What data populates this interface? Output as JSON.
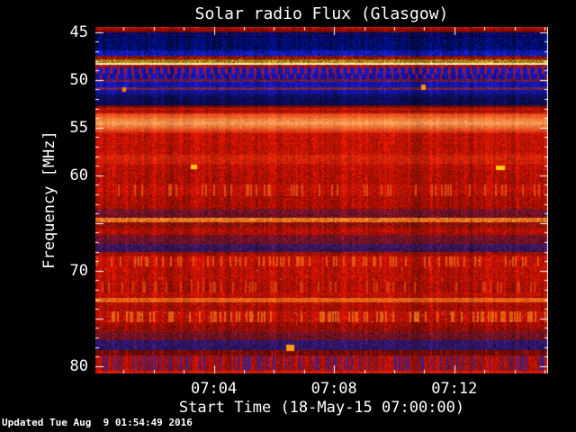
{
  "footer": {
    "updated": "Updated Tue Aug  9 01:54:49 2016"
  },
  "chart_data": {
    "type": "heatmap",
    "title": "Solar radio Flux (Glasgow)",
    "xlabel": "Start Time (18-May-15 07:00:00)",
    "ylabel": "Frequency [MHz]",
    "time_range_min": [
      0.06,
      15.12
    ],
    "freq_range_mhz": [
      44.46,
      80.78
    ],
    "x_ticks": {
      "minor_step": 1,
      "major": [
        4,
        8,
        12
      ],
      "labels": [
        {
          "t": 4,
          "text": "07:04"
        },
        {
          "t": 8,
          "text": "07:08"
        },
        {
          "t": 12,
          "text": "07:12"
        }
      ]
    },
    "y_ticks": {
      "minor_step": 1,
      "major": [
        45,
        50,
        55,
        60,
        65,
        70,
        75,
        80
      ],
      "labels": [
        {
          "f": 45,
          "text": "45"
        },
        {
          "f": 50,
          "text": "50"
        },
        {
          "f": 55,
          "text": "55"
        },
        {
          "f": 60,
          "text": "60"
        },
        {
          "f": 70,
          "text": "70"
        },
        {
          "f": 80,
          "text": "80"
        }
      ]
    },
    "colors": {
      "background": "#000000",
      "text": "#ffffff",
      "frame": "#ffffff"
    },
    "bands": [
      {
        "f0": 44.46,
        "f1": 45.02,
        "c0": "#b81404",
        "c1": "#6e0600",
        "pn": 0.35,
        "cn": 1.2
      },
      {
        "f0": 45.02,
        "f1": 46.9,
        "c0": "#000a60",
        "c1": "#000d70",
        "pn": 0.5,
        "cn": 2.2,
        "spk": {
          "c": "#1a2acc",
          "p": 0.02
        },
        "dash": {
          "c": "#020830",
          "p": 0.05,
          "w": 2
        }
      },
      {
        "f0": 46.9,
        "f1": 47.45,
        "c0": "#0d17a8",
        "c1": "#101cb8",
        "pn": 0.45,
        "cn": 1.8
      },
      {
        "f0": 47.45,
        "f1": 47.85,
        "c0": "#8e1405",
        "c1": "#9e1505",
        "pn": 0.45,
        "cn": 1.2,
        "spk": {
          "c": "#201048",
          "p": 0.12
        }
      },
      {
        "f0": 47.85,
        "f1": 48.23,
        "c0": "#a08018",
        "c1": "#c09a22",
        "pn": 0.4,
        "cn": 1.0,
        "spk": {
          "c": "#b02808",
          "p": 0.1
        }
      },
      {
        "f0": 48.23,
        "f1": 48.46,
        "c0": "#ffe98c",
        "c1": "#fff8d8",
        "pn": 0.12,
        "cn": 0.4
      },
      {
        "f0": 48.46,
        "f1": 48.7,
        "c0": "#b01808",
        "c1": "#a01405",
        "pn": 0.4,
        "cn": 1.0,
        "spk": {
          "c": "#30104a",
          "p": 0.08
        }
      },
      {
        "f0": 48.7,
        "f1": 49.36,
        "c0": "#111ac0",
        "c1": "#0f18b8",
        "pn": 0.4,
        "cn": 1.5,
        "dash": {
          "c": "#cc1606",
          "per": 8,
          "w": 3
        }
      },
      {
        "f0": 49.36,
        "f1": 49.92,
        "c0": "#0e15b2",
        "c1": "#0d14ac",
        "pn": 0.4,
        "cn": 1.5,
        "dash": {
          "c": "#b81505",
          "per": 9,
          "w": 2,
          "off": 4
        }
      },
      {
        "f0": 49.92,
        "f1": 50.2,
        "c0": "#6a1640",
        "c1": "#701a44",
        "pn": 0.35,
        "cn": 1.2
      },
      {
        "f0": 50.2,
        "f1": 50.77,
        "c0": "#0f18b8",
        "c1": "#0e16b0",
        "pn": 0.4,
        "cn": 1.6
      },
      {
        "f0": 50.77,
        "f1": 51.05,
        "c0": "#702040",
        "c1": "#762444",
        "pn": 0.35,
        "cn": 1.2
      },
      {
        "f0": 51.05,
        "f1": 51.43,
        "c0": "#0e15b0",
        "c1": "#0d14a8",
        "pn": 0.4,
        "cn": 1.6
      },
      {
        "f0": 51.43,
        "f1": 51.8,
        "c0": "#150f68",
        "c1": "#130d60",
        "pn": 0.4,
        "cn": 1.6
      },
      {
        "f0": 51.8,
        "f1": 52.66,
        "c0": "#0a0d58",
        "c1": "#090c50",
        "pn": 0.5,
        "cn": 2.0
      },
      {
        "f0": 52.66,
        "f1": 52.94,
        "c0": "#5e0a00",
        "c1": "#8a1000",
        "pn": 0.3,
        "cn": 1.0
      },
      {
        "f0": 52.94,
        "f1": 53.22,
        "c0": "#c41505",
        "c1": "#b41204",
        "pn": 0.25,
        "cn": 1.0
      },
      {
        "f0": 53.22,
        "f1": 53.5,
        "c0": "#9e1202",
        "c1": "#b81605",
        "pn": 0.25,
        "cn": 1.0
      },
      {
        "f0": 53.5,
        "f1": 54.55,
        "c0": "#e84412",
        "c1": "#ff9a52",
        "pn": 0.15,
        "cn": 0.8
      },
      {
        "f0": 54.55,
        "f1": 55.6,
        "c0": "#ff9a52",
        "c1": "#d82a0a",
        "pn": 0.15,
        "cn": 0.8
      },
      {
        "f0": 55.6,
        "f1": 57.85,
        "c0": "#c21404",
        "c1": "#c01304",
        "pn": 0.28,
        "cn": 1.4
      },
      {
        "f0": 57.85,
        "f1": 58.8,
        "c0": "#d62509",
        "c1": "#ce1f07",
        "pn": 0.25,
        "cn": 1.2
      },
      {
        "f0": 58.8,
        "f1": 59.55,
        "c0": "#c01305",
        "c1": "#ba1104",
        "pn": 0.28,
        "cn": 1.3
      },
      {
        "f0": 59.55,
        "f1": 60.96,
        "c0": "#b51103",
        "c1": "#b01003",
        "pn": 0.32,
        "cn": 1.6
      },
      {
        "f0": 60.96,
        "f1": 62.18,
        "c0": "#c01305",
        "c1": "#b81204",
        "pn": 0.3,
        "cn": 1.4,
        "dash": {
          "c": "#e85815",
          "p": 0.1,
          "w": 2
        }
      },
      {
        "f0": 62.18,
        "f1": 63.5,
        "c0": "#ae1003",
        "c1": "#a60e02",
        "pn": 0.32,
        "cn": 1.5
      },
      {
        "f0": 63.5,
        "f1": 64.45,
        "c0": "#7d1222",
        "c1": "#741020",
        "pn": 0.4,
        "cn": 1.3,
        "spk": {
          "c": "#3a1252",
          "p": 0.1
        }
      },
      {
        "f0": 64.45,
        "f1": 64.92,
        "c0": "#f47018",
        "c1": "#e86014",
        "pn": 0.25,
        "cn": 0.9,
        "spk": {
          "c": "#ffc242",
          "p": 0.12
        }
      },
      {
        "f0": 64.92,
        "f1": 65.6,
        "c0": "#8c1210",
        "c1": "#981204",
        "pn": 0.35,
        "cn": 1.3
      },
      {
        "f0": 65.6,
        "f1": 66.25,
        "c0": "#b31103",
        "c1": "#ab0f03",
        "pn": 0.3,
        "cn": 1.4
      },
      {
        "f0": 66.25,
        "f1": 67.2,
        "c0": "#6e1230",
        "c1": "#661028",
        "pn": 0.4,
        "cn": 1.3,
        "spk": {
          "c": "#8c1408",
          "p": 0.15
        }
      },
      {
        "f0": 67.2,
        "f1": 68.05,
        "c0": "#351560",
        "c1": "#301358",
        "pn": 0.45,
        "cn": 1.5,
        "spk": {
          "c": "#6a1a40",
          "p": 0.15
        }
      },
      {
        "f0": 68.05,
        "f1": 68.52,
        "c0": "#9c1002",
        "c1": "#a81103",
        "pn": 0.3,
        "cn": 1.2
      },
      {
        "f0": 68.52,
        "f1": 69.55,
        "c0": "#c21305",
        "c1": "#bc1204",
        "pn": 0.3,
        "cn": 1.4,
        "dash": {
          "c": "#f06212",
          "p": 0.13,
          "w": 2
        },
        "spk": {
          "c": "#c8c832",
          "p": 0.004
        }
      },
      {
        "f0": 69.55,
        "f1": 71.15,
        "c0": "#bb1204",
        "c1": "#b51103",
        "pn": 0.3,
        "cn": 1.5,
        "spk": {
          "c": "#c8c832",
          "p": 0.002
        }
      },
      {
        "f0": 71.15,
        "f1": 72.28,
        "c0": "#b01003",
        "c1": "#aa0f03",
        "pn": 0.32,
        "cn": 1.5,
        "dash": {
          "c": "#e04410",
          "p": 0.1,
          "w": 2
        }
      },
      {
        "f0": 72.28,
        "f1": 72.85,
        "c0": "#bb1204",
        "c1": "#b81104",
        "pn": 0.28,
        "cn": 1.3
      },
      {
        "f0": 72.85,
        "f1": 73.32,
        "c0": "#f06418",
        "c1": "#e65a12",
        "pn": 0.22,
        "cn": 0.9
      },
      {
        "f0": 73.32,
        "f1": 74.27,
        "c0": "#b01103",
        "c1": "#aa1003",
        "pn": 0.3,
        "cn": 1.4
      },
      {
        "f0": 74.27,
        "f1": 75.4,
        "c0": "#c11305",
        "c1": "#ba1204",
        "pn": 0.3,
        "cn": 1.4,
        "dash": {
          "c": "#f07014",
          "p": 0.18,
          "w": 2
        },
        "spk": {
          "c": "#c2c22a",
          "p": 0.008
        }
      },
      {
        "f0": 75.4,
        "f1": 76.35,
        "c0": "#9d0f02",
        "c1": "#960d02",
        "pn": 0.35,
        "cn": 1.5
      },
      {
        "f0": 76.35,
        "f1": 77.28,
        "c0": "#701226",
        "c1": "#661022",
        "pn": 0.4,
        "cn": 1.4,
        "spk": {
          "c": "#8c1408",
          "p": 0.1
        }
      },
      {
        "f0": 77.28,
        "f1": 78.32,
        "c0": "#2a1572",
        "c1": "#261368",
        "pn": 0.45,
        "cn": 1.5,
        "spk": {
          "c": "#5a1a45",
          "p": 0.15
        }
      },
      {
        "f0": 78.32,
        "f1": 78.9,
        "c0": "#8c0e00",
        "c1": "#860c00",
        "pn": 0.35,
        "cn": 1.4,
        "dash": {
          "c": "#5a0800",
          "p": 0.3,
          "w": 2
        }
      },
      {
        "f0": 78.9,
        "f1": 80.5,
        "c0": "#b31103",
        "c1": "#ae1003",
        "pn": 0.3,
        "cn": 1.4,
        "dash": {
          "c": "#2222a8",
          "p": 0.28,
          "w": 1
        }
      },
      {
        "f0": 80.5,
        "f1": 80.78,
        "c0": "#d82008",
        "c1": "#cc1a06",
        "pn": 0.2,
        "cn": 0.8
      }
    ],
    "bursts": [
      {
        "t": 1.02,
        "f": 51.0,
        "w": 4,
        "h": 5,
        "c": "#ff8800"
      },
      {
        "t": 10.96,
        "f": 50.75,
        "w": 5,
        "h": 6,
        "c": "#ff9100"
      },
      {
        "t": 3.33,
        "f": 59.15,
        "w": 7,
        "h": 5,
        "c": "#ffc800"
      },
      {
        "t": 13.53,
        "f": 59.2,
        "w": 10,
        "h": 5,
        "c": "#ffc800"
      },
      {
        "t": 6.55,
        "f": 78.05,
        "w": 9,
        "h": 7,
        "c": "#ff9900"
      }
    ]
  }
}
